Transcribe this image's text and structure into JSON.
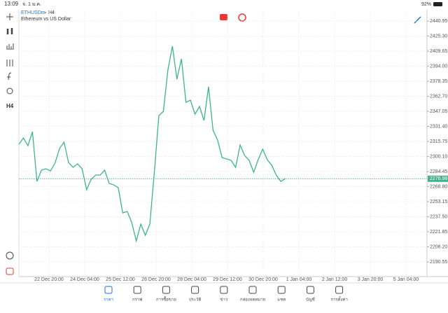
{
  "status_bar": {
    "time": "13:09",
    "date": "จ. 1 ม.ค.",
    "battery": "92%"
  },
  "header": {
    "symbol": "ETHUSDm",
    "timeframe": "H4",
    "description": "Ethereum vs US Dollar"
  },
  "toolbar": {
    "timeframe": "H4"
  },
  "chart_data": {
    "type": "line",
    "color": "#3cb58c",
    "grid": true,
    "values": [
      2312.84,
      2319.39,
      2311.38,
      2325.94,
      2274.26,
      2285.91,
      2287.36,
      2285.18,
      2293.19,
      2308.47,
      2315.02,
      2293.91,
      2288.82,
      2292.46,
      2287.36,
      2265.53,
      2276.44,
      2280.81,
      2280.81,
      2285.91,
      2272.08,
      2270.62,
      2267.71,
      2241.51,
      2242.96,
      2231.31,
      2212.39,
      2229.86,
      2218.21,
      2229.86,
      2283.72,
      2342.68,
      2347.05,
      2390.0,
      2414.75,
      2380.53,
      2401.64,
      2356.51,
      2358.7,
      2344.14,
      2352.15,
      2337.59,
      2372.53,
      2327.4,
      2317.21,
      2299.01,
      2297.55,
      2296.1,
      2288.82,
      2312.11,
      2301.19,
      2296.1,
      2283.72,
      2296.83,
      2307.74,
      2296.83,
      2291.0,
      2280.81,
      2274.26,
      2276.98
    ],
    "ylim": [
      2175.3,
      2452.6
    ],
    "yticks": [
      2440.95,
      {
        "value": 2425.3,
        "label": "2425.30"
      },
      2409.65,
      {
        "value": 2394.0,
        "label": "2394.00"
      },
      2378.35,
      {
        "value": 2362.7,
        "label": "2362.70"
      },
      2347.05,
      {
        "value": 2331.4,
        "label": "2331.40"
      },
      2315.75,
      {
        "value": 2300.1,
        "label": "2300.10"
      },
      2284.45,
      {
        "value": 2268.8,
        "label": "2268.80"
      },
      2253.15,
      {
        "value": 2237.5,
        "label": "2237.50"
      },
      2221.85,
      {
        "value": 2206.2,
        "label": "2206.20"
      },
      2190.55
    ],
    "xticks": [
      "22 Dec 20:00",
      "24 Dec 04:00",
      "25 Dec 12:00",
      "26 Dec 20:00",
      "28 Dec 04:00",
      "29 Dec 12:00",
      "30 Dec 20:00",
      "1 Jan 04:00",
      "2 Jan 12:00",
      "3 Jan 20:00",
      "5 Jan 04:00"
    ],
    "last_price": 2276.98
  },
  "nav": [
    "ราคา",
    "กราฟ",
    "การซื้อขาย",
    "ประวัติ",
    "ข่าว",
    "กล่องจดหมาย",
    "แชท",
    "บัญชี",
    "การตั้งค่า"
  ]
}
